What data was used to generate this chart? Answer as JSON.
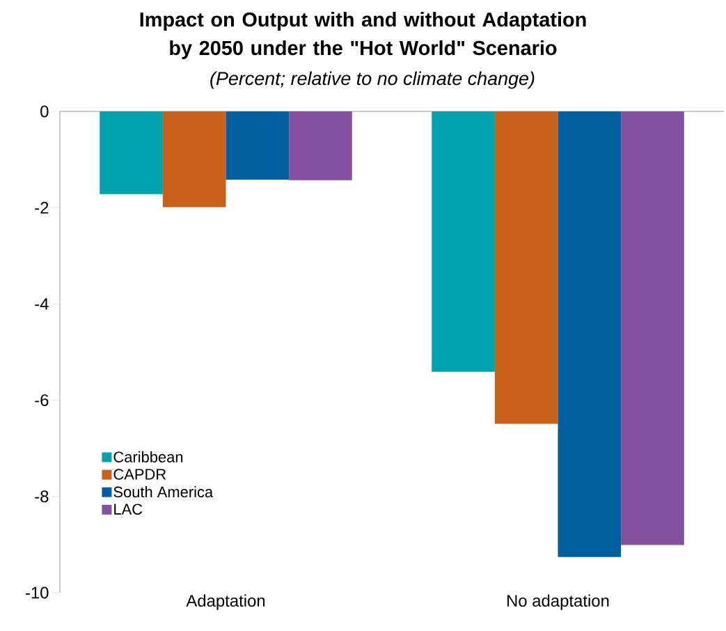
{
  "chart_data": {
    "type": "bar",
    "title": "Impact on Output with and without Adaptation by 2050 under the \"Hot World\" Scenario",
    "subtitle": "(Percent; relative to no climate change)",
    "categories": [
      "Adaptation",
      "No adaptation"
    ],
    "series": [
      {
        "name": "Caribbean",
        "color": "#00a3ad",
        "values": [
          -1.72,
          -5.41
        ]
      },
      {
        "name": "CAPDR",
        "color": "#c8611a",
        "values": [
          -1.99,
          -6.49
        ]
      },
      {
        "name": "South America",
        "color": "#005f9e",
        "values": [
          -1.42,
          -9.26
        ]
      },
      {
        "name": "LAC",
        "color": "#834f9f",
        "values": [
          -1.43,
          -9.01
        ]
      }
    ],
    "ylim": [
      -10,
      0
    ],
    "yticks": [
      -10,
      -8,
      -6,
      -4,
      -2,
      0
    ],
    "legend": "bottom left"
  }
}
